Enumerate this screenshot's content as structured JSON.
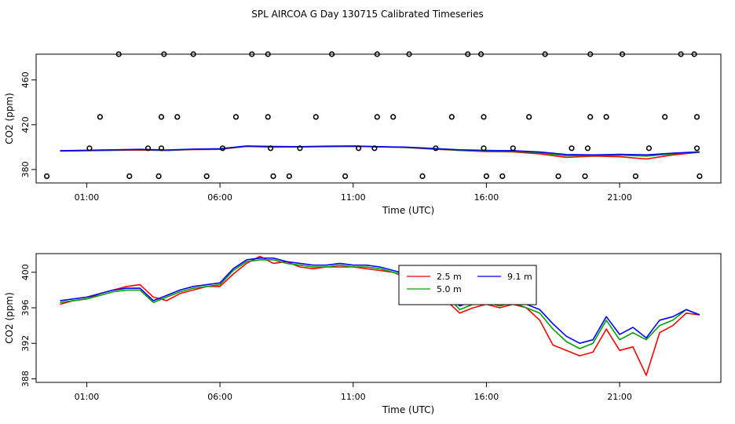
{
  "title": "SPL AIRCOA G  Day 130715  Calibrated Timeseries",
  "chart_data": [
    {
      "type": "line",
      "panel": "top",
      "xlabel": "Time (UTC)",
      "ylabel": "CO2 (ppm)",
      "xlim": [
        -0.9,
        24.8
      ],
      "ylim": [
        368,
        483
      ],
      "xticks": [
        1,
        6,
        11,
        16,
        21
      ],
      "xtick_labels": [
        "01:00",
        "06:00",
        "11:00",
        "16:00",
        "21:00"
      ],
      "yticks": [
        380,
        420,
        460
      ],
      "ytick_labels": [
        "380",
        "420",
        "460"
      ],
      "series_colors": [
        "#ff0000",
        "#00a000",
        "#0000ff"
      ],
      "series": [
        {
          "name": "2.5 m",
          "color": "#ff0000",
          "x": [
            0,
            1,
            2,
            3,
            4,
            5,
            6,
            7,
            8,
            9,
            10,
            11,
            12,
            13,
            14,
            15,
            16,
            17,
            18,
            19,
            20,
            21,
            22,
            23,
            24
          ],
          "y": [
            396.4,
            396.8,
            397.2,
            397.4,
            397.0,
            397.8,
            398.0,
            400.6,
            400.0,
            400.2,
            400.4,
            400.6,
            400.2,
            399.6,
            398.2,
            397.0,
            396.0,
            395.8,
            394.0,
            390.8,
            392.0,
            391.4,
            389.4,
            393.0,
            395.4
          ]
        },
        {
          "name": "5.0 m",
          "color": "#00a000",
          "x": [
            0,
            1,
            2,
            3,
            4,
            5,
            6,
            7,
            8,
            9,
            10,
            11,
            12,
            13,
            14,
            15,
            16,
            17,
            18,
            19,
            20,
            21,
            22,
            23,
            24
          ],
          "y": [
            396.6,
            397.0,
            397.4,
            397.8,
            397.2,
            398.0,
            398.4,
            400.8,
            400.4,
            400.2,
            400.6,
            400.8,
            400.2,
            399.8,
            398.6,
            397.2,
            396.4,
            396.2,
            395.0,
            392.2,
            392.6,
            392.8,
            392.0,
            394.0,
            395.6
          ]
        },
        {
          "name": "9.1 m",
          "color": "#0000ff",
          "x": [
            0,
            1,
            2,
            3,
            4,
            5,
            6,
            7,
            8,
            9,
            10,
            11,
            12,
            13,
            14,
            15,
            16,
            17,
            18,
            19,
            20,
            21,
            22,
            23,
            24
          ],
          "y": [
            396.8,
            397.2,
            397.6,
            398.0,
            397.4,
            398.2,
            398.6,
            401.0,
            400.6,
            400.4,
            400.8,
            401.0,
            400.4,
            400.0,
            398.8,
            397.6,
            397.0,
            396.8,
            395.6,
            393.4,
            393.0,
            393.6,
            393.0,
            394.6,
            395.8
          ]
        }
      ],
      "points": [
        {
          "x": -0.5,
          "y": 374
        },
        {
          "x": 1.1,
          "y": 399
        },
        {
          "x": 1.5,
          "y": 427
        },
        {
          "x": 2.2,
          "y": 483
        },
        {
          "x": 2.6,
          "y": 374
        },
        {
          "x": 3.3,
          "y": 399
        },
        {
          "x": 3.7,
          "y": 374
        },
        {
          "x": 3.8,
          "y": 427
        },
        {
          "x": 3.8,
          "y": 399
        },
        {
          "x": 3.9,
          "y": 483
        },
        {
          "x": 4.4,
          "y": 427
        },
        {
          "x": 5.0,
          "y": 483
        },
        {
          "x": 5.5,
          "y": 374
        },
        {
          "x": 6.1,
          "y": 399
        },
        {
          "x": 6.6,
          "y": 427
        },
        {
          "x": 7.2,
          "y": 483
        },
        {
          "x": 7.8,
          "y": 483
        },
        {
          "x": 7.8,
          "y": 427
        },
        {
          "x": 7.9,
          "y": 399
        },
        {
          "x": 8.0,
          "y": 374
        },
        {
          "x": 8.6,
          "y": 374
        },
        {
          "x": 9.0,
          "y": 399
        },
        {
          "x": 9.6,
          "y": 427
        },
        {
          "x": 10.2,
          "y": 483
        },
        {
          "x": 10.7,
          "y": 374
        },
        {
          "x": 11.2,
          "y": 399
        },
        {
          "x": 11.8,
          "y": 399
        },
        {
          "x": 11.9,
          "y": 427
        },
        {
          "x": 11.9,
          "y": 483
        },
        {
          "x": 12.5,
          "y": 427
        },
        {
          "x": 13.1,
          "y": 483
        },
        {
          "x": 13.6,
          "y": 374
        },
        {
          "x": 14.1,
          "y": 399
        },
        {
          "x": 14.7,
          "y": 427
        },
        {
          "x": 15.3,
          "y": 483
        },
        {
          "x": 15.8,
          "y": 483
        },
        {
          "x": 15.9,
          "y": 427
        },
        {
          "x": 15.9,
          "y": 399
        },
        {
          "x": 16.0,
          "y": 374
        },
        {
          "x": 16.6,
          "y": 374
        },
        {
          "x": 17.0,
          "y": 399
        },
        {
          "x": 17.6,
          "y": 427
        },
        {
          "x": 18.2,
          "y": 483
        },
        {
          "x": 18.7,
          "y": 374
        },
        {
          "x": 19.2,
          "y": 399
        },
        {
          "x": 19.7,
          "y": 374
        },
        {
          "x": 19.8,
          "y": 399
        },
        {
          "x": 19.9,
          "y": 427
        },
        {
          "x": 19.9,
          "y": 483
        },
        {
          "x": 20.5,
          "y": 427
        },
        {
          "x": 21.1,
          "y": 483
        },
        {
          "x": 21.6,
          "y": 374
        },
        {
          "x": 22.1,
          "y": 399
        },
        {
          "x": 22.7,
          "y": 427
        },
        {
          "x": 23.3,
          "y": 483
        },
        {
          "x": 23.8,
          "y": 483
        },
        {
          "x": 23.9,
          "y": 427
        },
        {
          "x": 23.9,
          "y": 399
        },
        {
          "x": 24.0,
          "y": 374
        }
      ]
    },
    {
      "type": "line",
      "panel": "bottom",
      "xlabel": "Time (UTC)",
      "ylabel": "CO2 (ppm)",
      "xlim": [
        -0.9,
        24.8
      ],
      "ylim": [
        387.6,
        402.1
      ],
      "xticks": [
        1,
        6,
        11,
        16,
        21
      ],
      "xtick_labels": [
        "01:00",
        "06:00",
        "11:00",
        "16:00",
        "21:00"
      ],
      "yticks": [
        388,
        392,
        396,
        400
      ],
      "ytick_labels": [
        "388",
        "392",
        "396",
        "400"
      ],
      "legend": [
        "2.5 m",
        "5.0 m",
        "9.1 m"
      ],
      "legend_display": [
        "2.5 m",
        "5.0 m",
        "9.1 m"
      ],
      "series": [
        {
          "name": "2.5 m",
          "color": "#ff0000",
          "x": [
            0,
            0.5,
            1,
            1.5,
            2,
            2.5,
            3,
            3.5,
            4,
            4.5,
            5,
            5.5,
            6,
            6.5,
            7,
            7.5,
            8,
            8.5,
            9,
            9.5,
            10,
            10.5,
            11,
            11.5,
            12,
            12.5,
            13,
            13.5,
            14,
            14.5,
            15,
            15.5,
            16,
            16.5,
            17,
            17.5,
            18,
            18.5,
            19,
            19.5,
            20,
            20.5,
            21,
            21.5,
            22,
            22.5,
            23,
            23.5,
            24
          ],
          "y": [
            396.4,
            396.8,
            397.0,
            397.6,
            398.0,
            398.4,
            398.6,
            397.2,
            396.8,
            397.6,
            398.0,
            398.4,
            398.4,
            399.8,
            401.0,
            401.8,
            401.0,
            401.2,
            400.6,
            400.4,
            400.6,
            400.6,
            400.6,
            400.4,
            400.2,
            400.0,
            399.4,
            399.0,
            398.4,
            396.8,
            395.4,
            396.0,
            396.4,
            396.0,
            396.4,
            396.0,
            394.6,
            391.8,
            391.2,
            390.6,
            391.0,
            393.6,
            391.2,
            391.6,
            388.4,
            393.2,
            394.0,
            395.4,
            395.2
          ]
        },
        {
          "name": "5.0 m",
          "color": "#00a000",
          "x": [
            0,
            0.5,
            1,
            1.5,
            2,
            2.5,
            3,
            3.5,
            4,
            4.5,
            5,
            5.5,
            6,
            6.5,
            7,
            7.5,
            8,
            8.5,
            9,
            9.5,
            10,
            10.5,
            11,
            11.5,
            12,
            12.5,
            13,
            13.5,
            14,
            14.5,
            15,
            15.5,
            16,
            16.5,
            17,
            17.5,
            18,
            18.5,
            19,
            19.5,
            20,
            20.5,
            21,
            21.5,
            22,
            22.5,
            23,
            23.5,
            24
          ],
          "y": [
            396.6,
            396.8,
            397.0,
            397.4,
            397.8,
            398.0,
            398.0,
            396.6,
            397.2,
            397.8,
            398.2,
            398.4,
            398.6,
            400.2,
            401.2,
            401.4,
            401.4,
            401.0,
            400.8,
            400.6,
            400.6,
            400.8,
            400.6,
            400.6,
            400.4,
            400.0,
            399.6,
            399.2,
            398.6,
            397.4,
            395.8,
            396.4,
            396.6,
            396.2,
            396.6,
            396.0,
            395.4,
            393.6,
            392.2,
            391.4,
            392.0,
            394.6,
            392.4,
            393.2,
            392.4,
            394.0,
            394.6,
            395.8,
            395.2
          ]
        },
        {
          "name": "9.1 m",
          "color": "#0000ff",
          "x": [
            0,
            0.5,
            1,
            1.5,
            2,
            2.5,
            3,
            3.5,
            4,
            4.5,
            5,
            5.5,
            6,
            6.5,
            7,
            7.5,
            8,
            8.5,
            9,
            9.5,
            10,
            10.5,
            11,
            11.5,
            12,
            12.5,
            13,
            13.5,
            14,
            14.5,
            15,
            15.5,
            16,
            16.5,
            17,
            17.5,
            18,
            18.5,
            19,
            19.5,
            20,
            20.5,
            21,
            21.5,
            22,
            22.5,
            23,
            23.5,
            24
          ],
          "y": [
            396.8,
            397.0,
            397.2,
            397.6,
            398.0,
            398.2,
            398.2,
            396.8,
            397.4,
            398.0,
            398.4,
            398.6,
            398.8,
            400.4,
            401.4,
            401.6,
            401.6,
            401.2,
            401.0,
            400.8,
            400.8,
            401.0,
            400.8,
            400.8,
            400.6,
            400.2,
            399.8,
            399.4,
            398.8,
            397.6,
            396.2,
            396.8,
            397.0,
            396.6,
            397.0,
            396.4,
            395.8,
            394.2,
            392.8,
            392.0,
            392.4,
            395.0,
            393.0,
            393.8,
            392.6,
            394.6,
            395.0,
            395.8,
            395.2
          ]
        }
      ]
    }
  ]
}
